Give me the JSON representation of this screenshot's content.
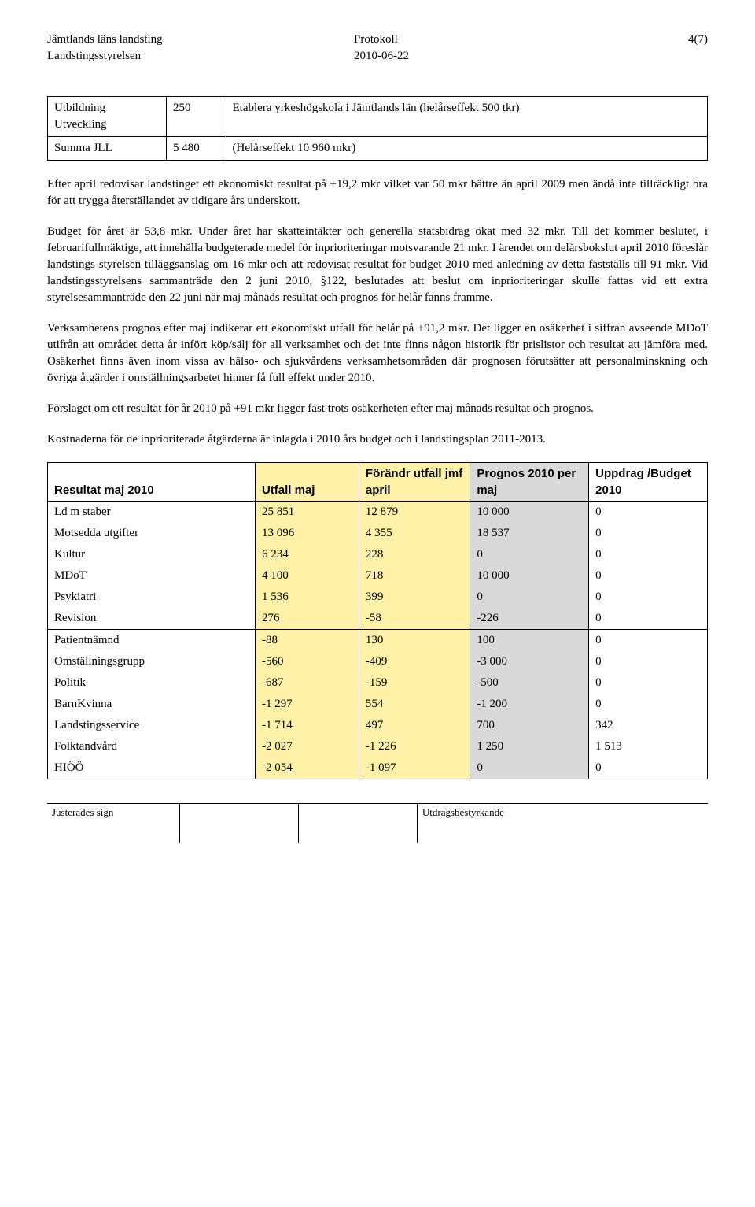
{
  "header": {
    "org1": "Jämtlands läns landsting",
    "org2": "Landstingsstyrelsen",
    "doc_type": "Protokoll",
    "date": "2010-06-22",
    "page": "4(7)"
  },
  "small_table": {
    "rows": [
      {
        "c1": "Utbildning Utveckling",
        "c2": "250",
        "c3": "Etablera yrkeshögskola i Jämtlands län (helårseffekt 500 tkr)"
      },
      {
        "c1": "Summa JLL",
        "c2": "5 480",
        "c3": "(Helårseffekt 10 960 mkr)"
      }
    ]
  },
  "paragraphs": {
    "p1": "Efter april redovisar landstinget ett ekonomiskt resultat på +19,2 mkr vilket var 50 mkr bättre än april 2009 men ändå inte tillräckligt bra för att trygga återställandet av tidigare års underskott.",
    "p2": "Budget för året är 53,8 mkr. Under året har skatteintäkter och generella statsbidrag ökat med 32 mkr. Till det kommer beslutet, i februarifullmäktige, att innehålla budgeterade medel för inprioriteringar motsvarande 21 mkr. I ärendet om delårsbokslut april 2010 föreslår landstings-styrelsen tilläggsanslag om 16 mkr och att redovisat resultat för budget 2010 med anledning av detta fastställs till 91 mkr. Vid landstingsstyrelsens sammanträde den 2 juni 2010, §122, beslutades att beslut om inprioriteringar skulle fattas vid ett extra styrelsesammanträde den 22 juni när maj månads resultat och prognos för helår fanns framme.",
    "p3": "Verksamhetens prognos efter maj indikerar ett ekonomiskt utfall för helår på +91,2 mkr. Det ligger en osäkerhet i siffran avseende MDoT utifrån att området detta år infört köp/sälj för all verksamhet och det inte finns någon historik för prislistor och resultat att jämföra med. Osäkerhet finns även inom vissa av hälso- och sjukvårdens verksamhetsområden där prognosen förutsätter att personalminskning och övriga åtgärder i omställningsarbetet hinner få full effekt under 2010.",
    "p4": "Förslaget om ett resultat för år 2010 på +91 mkr ligger fast trots osäkerheten efter maj månads resultat och prognos.",
    "p5": "Kostnaderna för de inprioriterade åtgärderna är inlagda i 2010 års budget och i landstingsplan 2011-2013."
  },
  "data_table": {
    "headers": {
      "h1": "Resultat maj 2010",
      "h2": "Utfall maj",
      "h3": "Förändr utfall jmf april",
      "h4": "Prognos 2010 per maj",
      "h5": "Uppdrag /Budget 2010"
    },
    "rows": [
      {
        "label": "Ld m staber",
        "utfall": "25 851",
        "forandr": "12 879",
        "prognos": "10 000",
        "uppdrag": "0",
        "section_end": false
      },
      {
        "label": "Motsedda utgifter",
        "utfall": "13 096",
        "forandr": "4 355",
        "prognos": "18 537",
        "uppdrag": "0",
        "section_end": false
      },
      {
        "label": "Kultur",
        "utfall": "6 234",
        "forandr": "228",
        "prognos": "0",
        "uppdrag": "0",
        "section_end": false
      },
      {
        "label": "MDoT",
        "utfall": "4 100",
        "forandr": "718",
        "prognos": "10 000",
        "uppdrag": "0",
        "section_end": false
      },
      {
        "label": "Psykiatri",
        "utfall": "1 536",
        "forandr": "399",
        "prognos": "0",
        "uppdrag": "0",
        "section_end": false
      },
      {
        "label": "Revision",
        "utfall": "276",
        "forandr": "-58",
        "prognos": "-226",
        "uppdrag": "0",
        "section_end": true
      },
      {
        "label": "Patientnämnd",
        "utfall": "-88",
        "forandr": "130",
        "prognos": "100",
        "uppdrag": "0",
        "section_end": false
      },
      {
        "label": "Omställningsgrupp",
        "utfall": "-560",
        "forandr": "-409",
        "prognos": "-3 000",
        "uppdrag": "0",
        "section_end": false
      },
      {
        "label": "Politik",
        "utfall": "-687",
        "forandr": "-159",
        "prognos": "-500",
        "uppdrag": "0",
        "section_end": false
      },
      {
        "label": "BarnKvinna",
        "utfall": "-1 297",
        "forandr": "554",
        "prognos": "-1 200",
        "uppdrag": "0",
        "section_end": false
      },
      {
        "label": "Landstingsservice",
        "utfall": "-1 714",
        "forandr": "497",
        "prognos": "700",
        "uppdrag": "342",
        "section_end": false
      },
      {
        "label": "Folktandvård",
        "utfall": "-2 027",
        "forandr": "-1 226",
        "prognos": "1 250",
        "uppdrag": "1 513",
        "section_end": false
      },
      {
        "label": "HIÖÖ",
        "utfall": "-2 054",
        "forandr": "-1 097",
        "prognos": "0",
        "uppdrag": "0",
        "section_end": false
      }
    ],
    "colors": {
      "highlight": "#fff2a8",
      "grey": "#d9d9d9"
    }
  },
  "footer": {
    "left": "Justerades sign",
    "right": "Utdragsbestyrkande"
  }
}
